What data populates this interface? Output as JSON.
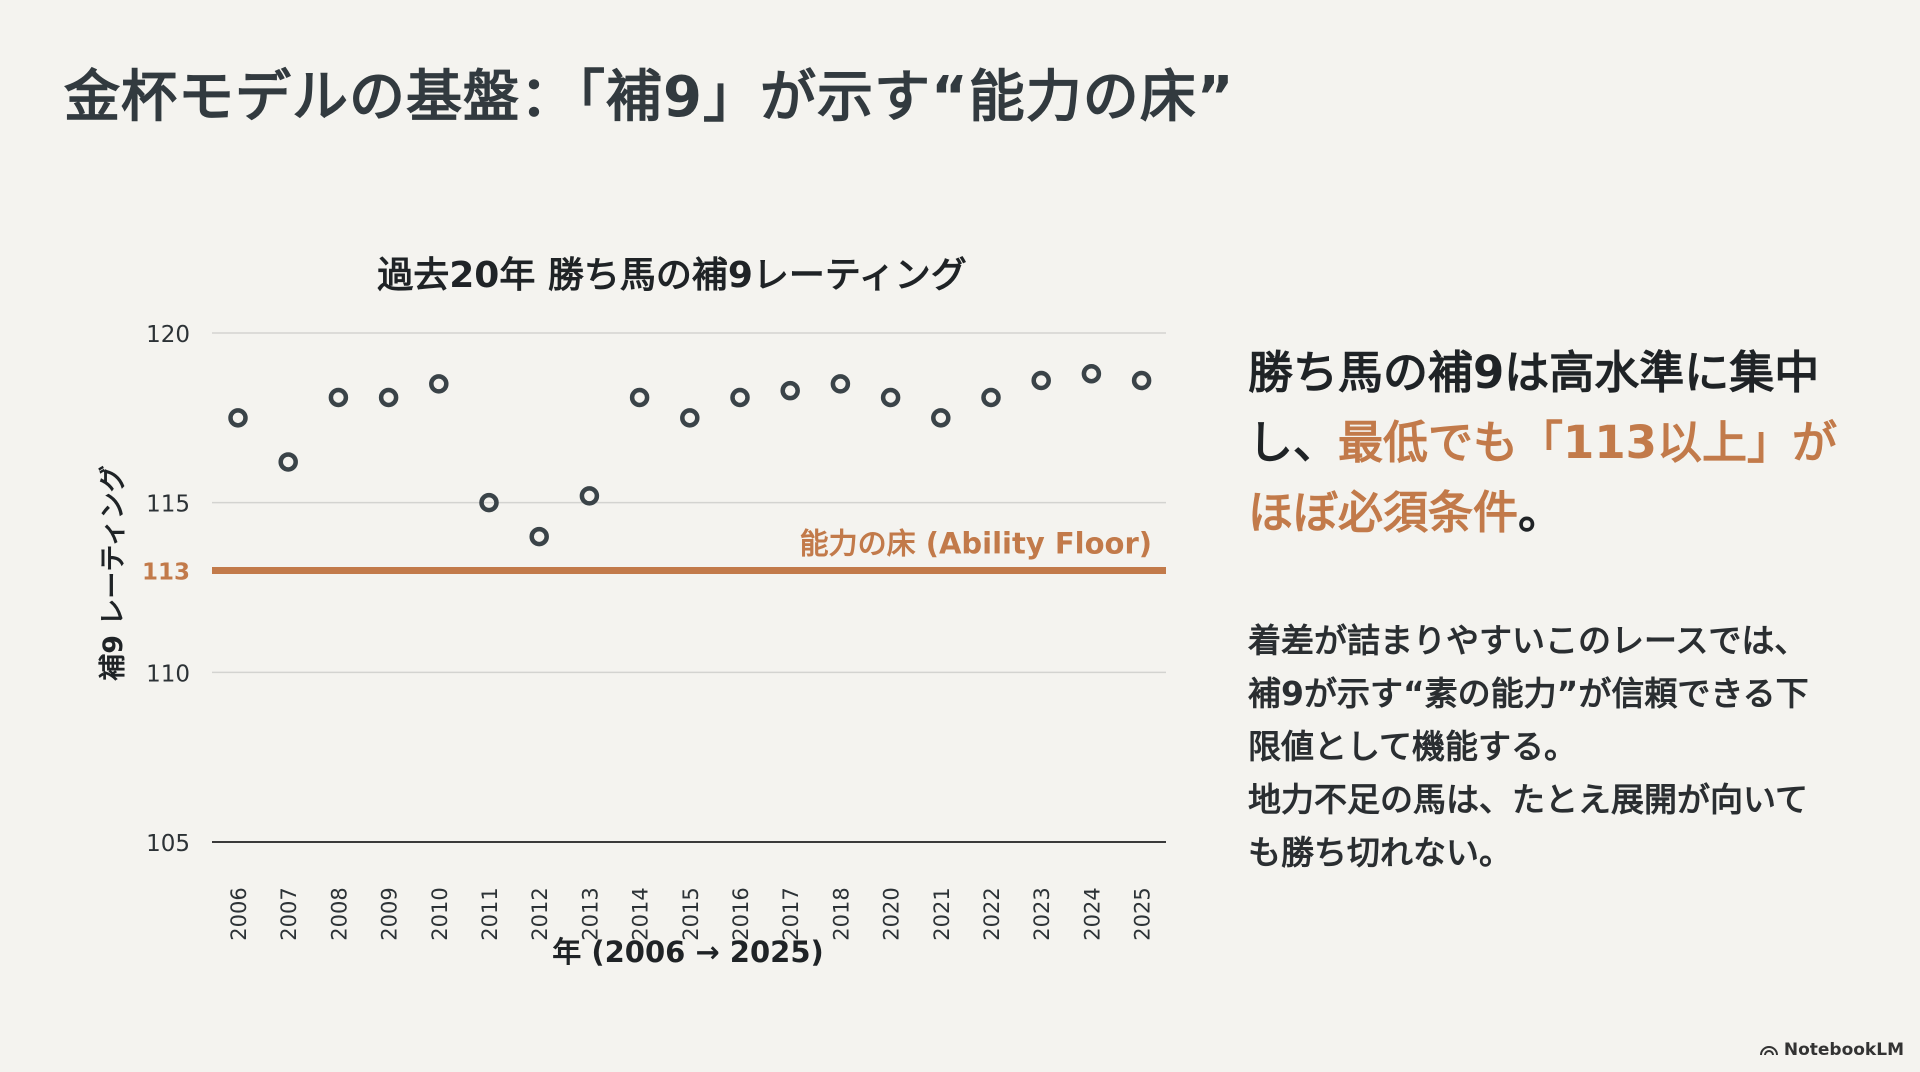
{
  "slide": {
    "title": "金杯モデルの基盤：「補9」が示す“能力の床”"
  },
  "side_panel": {
    "headline_part1": "勝ち馬の補9は高水準に集中し、",
    "headline_accent": "最低でも「113以上」がほぼ必須条件",
    "headline_end": "。",
    "body_lines": [
      "着差が詰まりやすいこのレースでは、",
      "補9が示す“素の能力”が信頼できる下",
      "限値として機能する。",
      "地力不足の馬は、たとえ展開が向いて",
      "も勝ち切れない。"
    ]
  },
  "brand": {
    "label": "NotebookLM"
  },
  "colors": {
    "accent": "#c27a4a",
    "marker": "#3a4348",
    "grid": "#d3d3d0",
    "axis": "#3a3a3a"
  },
  "chart_data": {
    "type": "scatter",
    "title": "過去20年 勝ち馬の補9レーティング",
    "xlabel": "年 (2006 → 2025)",
    "ylabel": "補9 レーティング",
    "ylim": [
      105,
      120
    ],
    "yticks": [
      105,
      110,
      113,
      115,
      120
    ],
    "highlight_ticks": [
      113
    ],
    "x": [
      "2006",
      "2007",
      "2008",
      "2009",
      "2010",
      "2011",
      "2012",
      "2013",
      "2014",
      "2015",
      "2016",
      "2017",
      "2018",
      "2020",
      "2021",
      "2022",
      "2023",
      "2024",
      "2025"
    ],
    "y": [
      117.5,
      116.2,
      118.1,
      118.1,
      118.5,
      115.0,
      114.0,
      115.2,
      118.1,
      117.5,
      118.1,
      118.3,
      118.5,
      118.1,
      117.5,
      118.1,
      118.6,
      118.8,
      118.6
    ],
    "reference_line": {
      "value": 113,
      "label": "能力の床 (Ability Floor)"
    },
    "grid": true
  }
}
